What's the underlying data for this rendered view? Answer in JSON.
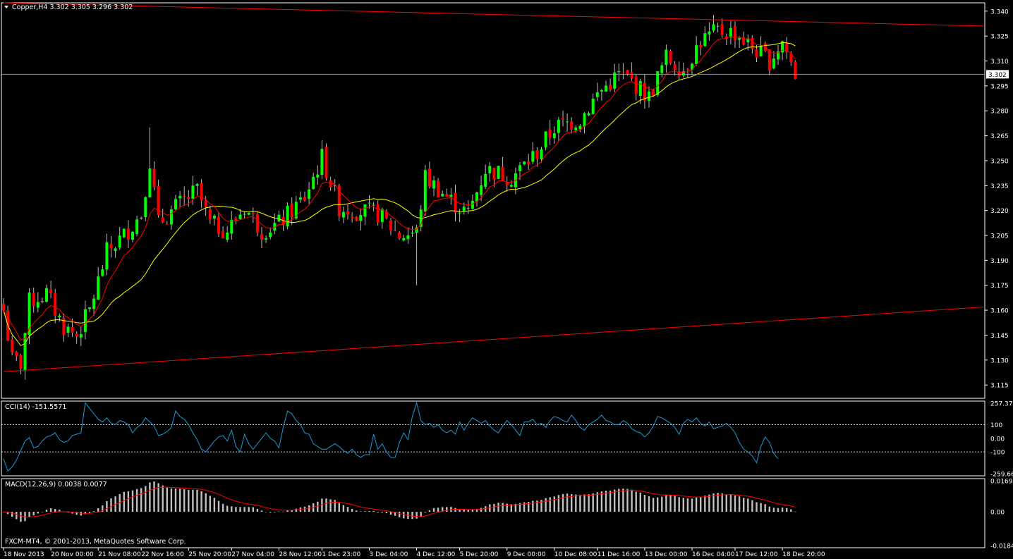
{
  "header": {
    "main_label": "Copper,H4  3.302 3.305 3.296 3.302",
    "cci_label": "CCI(14) -151.5571",
    "macd_label": "MACD(12,26,9) 0.0038 0.0077",
    "copyright": "FXCM-MT4, © 2001-2013, MetaQuotes Software Corp."
  },
  "colors": {
    "background": "#000000",
    "frame": "#ffffff",
    "bull_candle": "#00ff00",
    "bear_candle": "#ff0000",
    "wick": "#bbbbbb",
    "ma_fast": "#ff0000",
    "ma_slow": "#ffff00",
    "trendline": "#ff0000",
    "cci_line": "#1a9ad6",
    "macd_hist": "#c0c0c0",
    "macd_signal": "#ff0000",
    "price_line": "#8a9aa8"
  },
  "chart_data": [
    {
      "type": "candlestick",
      "symbol": "Copper",
      "timeframe": "H4",
      "current_price": 3.302,
      "ylim": [
        3.107,
        3.345
      ],
      "y_ticks": [
        3.34,
        3.325,
        3.31,
        3.295,
        3.28,
        3.265,
        3.25,
        3.235,
        3.22,
        3.205,
        3.19,
        3.175,
        3.16,
        3.145,
        3.13,
        3.115
      ],
      "y_tick_labels": [
        "3.340",
        "3.325",
        "3.310",
        "3.295",
        "3.280",
        "3.265",
        "3.250",
        "3.235",
        "3.220",
        "3.205",
        "3.190",
        "3.175",
        "3.160",
        "3.145",
        "3.130",
        "3.115"
      ],
      "current_price_label": "3.302",
      "x_labels": [
        {
          "bar": 0,
          "label": "18 Nov 2013"
        },
        {
          "bar": 11,
          "label": "20 Nov 00:00"
        },
        {
          "bar": 22,
          "label": "21 Nov 08:00"
        },
        {
          "bar": 32,
          "label": "22 Nov 16:00"
        },
        {
          "bar": 43,
          "label": "25 Nov 20:00"
        },
        {
          "bar": 53,
          "label": "27 Nov 04:00"
        },
        {
          "bar": 64,
          "label": "28 Nov 12:00"
        },
        {
          "bar": 74,
          "label": "1 Dec 23:00"
        },
        {
          "bar": 85,
          "label": "3 Dec 04:00"
        },
        {
          "bar": 96,
          "label": "4 Dec 12:00"
        },
        {
          "bar": 106,
          "label": "5 Dec 20:00"
        },
        {
          "bar": 117,
          "label": "9 Dec 00:00"
        },
        {
          "bar": 128,
          "label": "10 Dec 08:00"
        },
        {
          "bar": 138,
          "label": "11 Dec 16:00"
        },
        {
          "bar": 149,
          "label": "13 Dec 00:00"
        },
        {
          "bar": 160,
          "label": "16 Dec 04:00"
        },
        {
          "bar": 170,
          "label": "17 Dec 12:00"
        },
        {
          "bar": 181,
          "label": "18 Dec 20:00"
        }
      ],
      "trendlines": [
        {
          "from": [
            0,
            3.345
          ],
          "to": [
            229.5,
            3.331
          ]
        },
        {
          "from": [
            0,
            3.123
          ],
          "to": [
            229.5,
            3.162
          ]
        }
      ],
      "candles": []
    },
    {
      "type": "line",
      "name": "CCI(14)",
      "value": -151.5571,
      "ylim": [
        -259.662,
        257.378
      ],
      "levels": [
        100,
        -100
      ],
      "y_tick_labels": [
        "257.378",
        "100",
        "0.00",
        "-100",
        "-259.662"
      ],
      "values": [
        -150,
        -240,
        -210,
        -160,
        -90,
        -20,
        5,
        -70,
        -60,
        -20,
        10,
        20,
        40,
        -10,
        -30,
        -20,
        20,
        30,
        40,
        260,
        220,
        180,
        140,
        120,
        150,
        110,
        100,
        130,
        120,
        100,
        40,
        80,
        100,
        150,
        120,
        90,
        20,
        30,
        50,
        80,
        200,
        160,
        140,
        100,
        40,
        -10,
        -80,
        -100,
        -60,
        -20,
        10,
        20,
        -20,
        60,
        -60,
        -100,
        30,
        -40,
        -80,
        -40,
        0,
        40,
        0,
        -20,
        -70,
        80,
        200,
        180,
        130,
        100,
        40,
        30,
        -40,
        -60,
        -80,
        -80,
        -60,
        -40,
        -60,
        -90,
        -110,
        -80,
        -120,
        -140,
        -120,
        -120,
        30,
        -80,
        -40,
        -100,
        -140,
        -140,
        -30,
        40,
        -10,
        160,
        260,
        130,
        100,
        110,
        80,
        100,
        60,
        40,
        60,
        30,
        120,
        60,
        110,
        150,
        130,
        110,
        130,
        90,
        60,
        40,
        90,
        130,
        100,
        60,
        20,
        120,
        120,
        140,
        100,
        110,
        80,
        130,
        160,
        150,
        130,
        120,
        170,
        130,
        80,
        60,
        100,
        120,
        140,
        170,
        130,
        120,
        100,
        100,
        130,
        110,
        70,
        50,
        40,
        10,
        40,
        90,
        160,
        150,
        130,
        110,
        80,
        30,
        110,
        140,
        120,
        150,
        110,
        90,
        120,
        70,
        80,
        90,
        110,
        80,
        40,
        -30,
        -80,
        -100,
        -130,
        -180,
        -60,
        10,
        -30,
        -110,
        -150
      ]
    },
    {
      "type": "bar",
      "name": "MACD(12,26,9)",
      "main_value": 0.0038,
      "signal_value": 0.0077,
      "ylim": [
        -0.0184,
        0.0169
      ],
      "y_tick_labels": [
        "0.0169",
        "0.00",
        "-0.0184"
      ],
      "values": [],
      "signal": []
    }
  ]
}
